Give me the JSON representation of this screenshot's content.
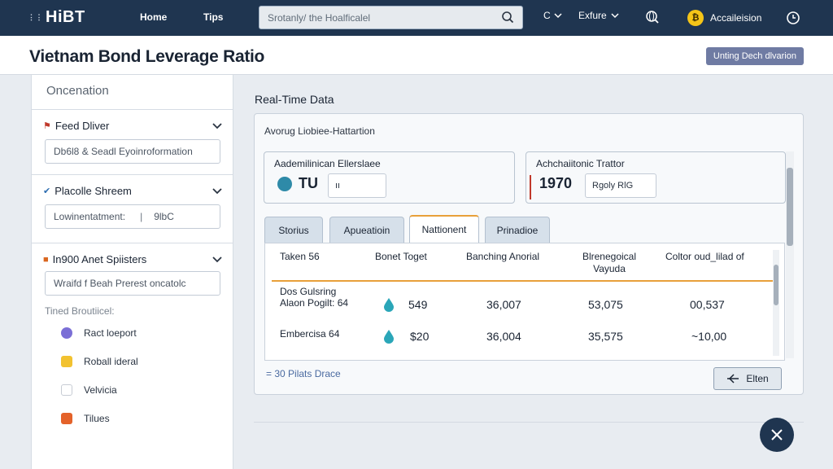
{
  "nav": {
    "logo": "HiBT",
    "links": [
      "Home",
      "Tips"
    ],
    "search_placeholder": "Srotanly/ the Hoalficalel",
    "history_label": "C",
    "explore_label": "Exfure",
    "account_label": "Accaileision"
  },
  "header": {
    "title": "Vietnam Bond Leverage Ratio",
    "action_button": "Unting Dech dlvarion"
  },
  "sidebar": {
    "heading": "Oncenation",
    "sections": [
      {
        "title": "Feed Dliver",
        "input": "Db6l8 & Seadl Eyoinroformation"
      },
      {
        "title": "Placolle Shreem",
        "input": "Lowinentatment:",
        "input_extra": "9lbC"
      },
      {
        "title": "In900 Anet Spiisters",
        "input": "Wraifd f Beah Prerest oncatolc"
      }
    ],
    "list_heading": "Tined Broutiicel:",
    "items": [
      "Ract loeport",
      "Roball ideral",
      "Velvicia",
      "Tilues"
    ]
  },
  "main": {
    "title": "Real-Time Data",
    "card_subtitle": "Avorug Liobiee-Hattartion",
    "mini_left": {
      "label": "Aademilinican Ellerslaee",
      "value": "TU",
      "box": "ıı"
    },
    "mini_right": {
      "label": "Achchaiitonic Trattor",
      "value": "1970",
      "box": "Rgoly RlG"
    },
    "tabs": [
      "Storius",
      "Apueatioin",
      "Nattionent",
      "Prinadioe"
    ],
    "active_tab": 2,
    "table": {
      "headers": [
        "Taken 56",
        "Bonet Toget",
        "Banching Anorial",
        "Blrenegoical Vayuda",
        "Coltor oud_lilad of"
      ],
      "rows": [
        {
          "name": "Dos Gulsring Alaon Pogilt: 64",
          "c1": "549",
          "c2": "36,007",
          "c3": "53,075",
          "c4": "00,537"
        },
        {
          "name": "Embercisa 64",
          "c1": "$20",
          "c2": "36,004",
          "c3": "35,575",
          "c4": "~10,00"
        }
      ]
    },
    "footnote": "= 30 Pilats Drace",
    "enter_button": "Elten"
  },
  "colors": {
    "nav_bg": "#1f3550",
    "accent_orange": "#e8a03a",
    "header_button": "#6f7ba3"
  }
}
